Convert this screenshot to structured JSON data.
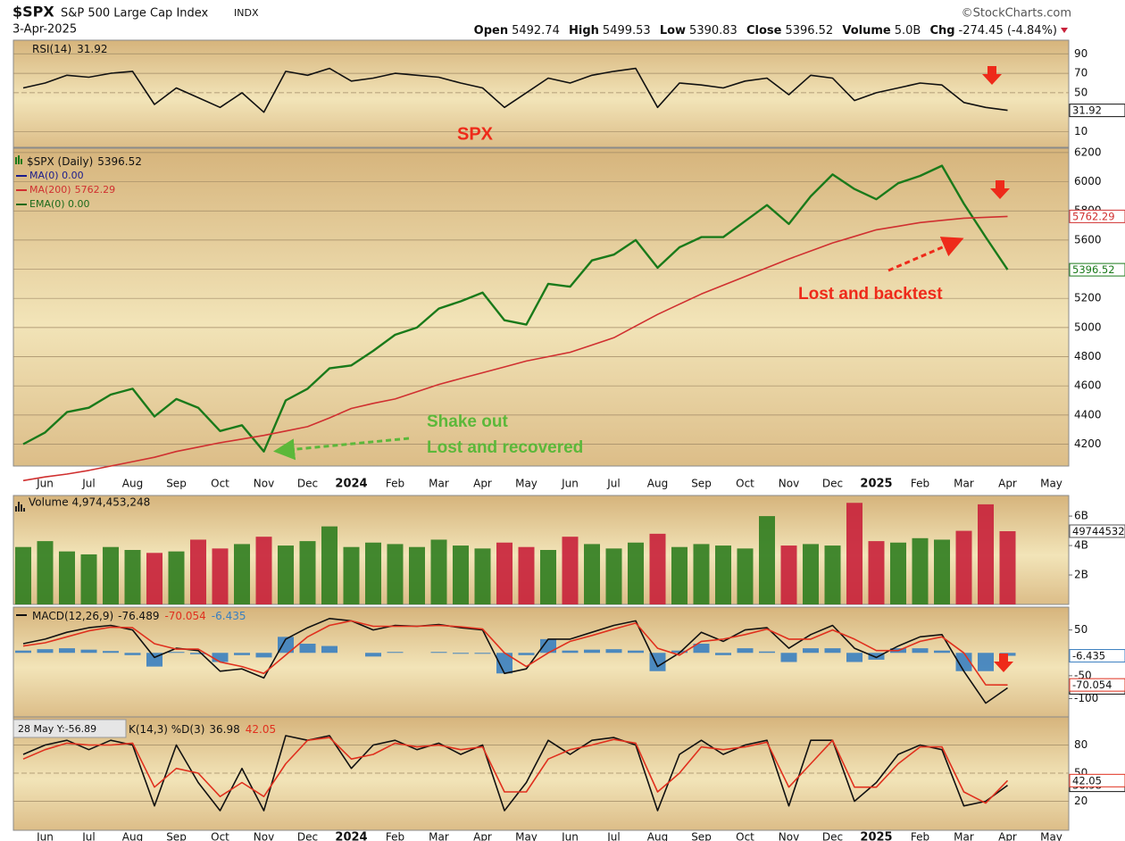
{
  "header": {
    "symbol": "$SPX",
    "name": "S&P 500 Large Cap Index",
    "exchange": "INDX",
    "source": "©StockCharts.com",
    "date": "3-Apr-2025",
    "quote": [
      {
        "label": "Open",
        "value": 5492.74
      },
      {
        "label": "High",
        "value": 5499.53
      },
      {
        "label": "Low",
        "value": 5390.83
      },
      {
        "label": "Close",
        "value": 5396.52
      },
      {
        "label": "Volume",
        "value": "5.0B"
      },
      {
        "label": "Chg",
        "value": "-274.45 (-4.84%)"
      }
    ]
  },
  "chart_data": [
    {
      "type": "line",
      "title": "RSI(14)",
      "annotation": "SPX",
      "ylim": [
        -6,
        104
      ],
      "yticks": [
        10,
        50,
        70,
        90
      ],
      "grid": true,
      "series": [
        {
          "name": "RSI(14)",
          "color": "#111111",
          "values": [
            55,
            60,
            68,
            66,
            70,
            72,
            38,
            55,
            45,
            35,
            50,
            30,
            72,
            68,
            75,
            62,
            65,
            70,
            68,
            66,
            60,
            55,
            35,
            50,
            65,
            60,
            68,
            72,
            75,
            35,
            60,
            58,
            55,
            62,
            65,
            48,
            68,
            65,
            42,
            50,
            55,
            60,
            58,
            40,
            35,
            31.92,
            null,
            null
          ]
        }
      ]
    },
    {
      "type": "line",
      "title": "$SPX (Daily)",
      "categories": [
        null,
        "Jun",
        null,
        "Jul",
        null,
        "Aug",
        null,
        "Sep",
        null,
        "Oct",
        null,
        "Nov",
        null,
        "Dec",
        null,
        "2024",
        null,
        "Feb",
        null,
        "Mar",
        null,
        "Apr",
        null,
        "May",
        null,
        "Jun",
        null,
        "Jul",
        null,
        "Aug",
        null,
        "Sep",
        null,
        "Oct",
        null,
        "Nov",
        null,
        "Dec",
        null,
        "2025",
        null,
        "Feb",
        null,
        "Mar",
        null,
        "Apr",
        null,
        "May"
      ],
      "ylim": [
        4050,
        6230
      ],
      "yticks": [
        4200,
        4400,
        4600,
        4800,
        5000,
        5200,
        5400,
        5600,
        5800,
        6000,
        6200
      ],
      "grid": true,
      "series": [
        {
          "name": "$SPX (Daily)",
          "color": "#1a7a1a",
          "values": [
            4200,
            4280,
            4420,
            4450,
            4540,
            4580,
            4390,
            4510,
            4450,
            4290,
            4330,
            4150,
            4500,
            4580,
            4720,
            4740,
            4840,
            4950,
            5000,
            5130,
            5180,
            5240,
            5050,
            5020,
            5300,
            5280,
            5460,
            5500,
            5600,
            5410,
            5550,
            5620,
            5620,
            5730,
            5840,
            5710,
            5900,
            6050,
            5950,
            5880,
            5990,
            6040,
            6110,
            5850,
            5620,
            5396.52,
            null,
            null
          ]
        },
        {
          "name": "MA(200)",
          "color": "#d03030",
          "values": [
            3950,
            3975,
            3995,
            4020,
            4050,
            4080,
            4110,
            4150,
            4180,
            4210,
            4235,
            4260,
            4290,
            4320,
            4380,
            4445,
            4480,
            4510,
            4560,
            4610,
            4650,
            4690,
            4730,
            4770,
            4800,
            4830,
            4880,
            4930,
            5010,
            5090,
            5160,
            5230,
            5290,
            5350,
            5410,
            5470,
            5525,
            5580,
            5625,
            5670,
            5695,
            5720,
            5735,
            5750,
            5756,
            5762.29,
            null,
            null
          ]
        }
      ],
      "legend_extra": [
        {
          "text": "MA(0) 0.00",
          "color": "#1c1c8c"
        },
        {
          "text": "EMA(0) 0.00",
          "color": "#1a6a1a"
        }
      ],
      "annotations": [
        "Lost and backtest",
        "Shake out",
        "Lost and recovered"
      ],
      "annotation_colors": [
        "#ee2a1a",
        "#5cb83a"
      ]
    },
    {
      "type": "bar",
      "title": "Volume 4,974,453,248",
      "up_color": "#2f7d1f",
      "down_color": "#c8203a",
      "ylim": [
        0,
        7400000000
      ],
      "yticks": [
        {
          "value": 2000000000,
          "label": "2B"
        },
        {
          "value": 4000000000,
          "label": "4B"
        },
        {
          "value": 6000000000,
          "label": "6B"
        }
      ],
      "grid": false,
      "series": [
        {
          "name": "Volume",
          "color": "#555555",
          "values": [
            3900000000.0,
            4300000000.0,
            3600000000.0,
            3400000000.0,
            3900000000.0,
            3700000000.0,
            3500000000.0,
            3600000000.0,
            4400000000.0,
            3800000000.0,
            4100000000.0,
            4600000000.0,
            4000000000.0,
            4300000000.0,
            5300000000.0,
            3900000000.0,
            4200000000.0,
            4100000000.0,
            3900000000.0,
            4400000000.0,
            4000000000.0,
            3800000000.0,
            4200000000.0,
            3900000000.0,
            3700000000.0,
            4600000000.0,
            4100000000.0,
            3800000000.0,
            4200000000.0,
            4800000000.0,
            3900000000.0,
            4100000000.0,
            4000000000.0,
            3800000000.0,
            6000000000.0,
            4000000000.0,
            4100000000.0,
            4000000000.0,
            6900000000.0,
            4300000000.0,
            4200000000.0,
            4500000000.0,
            4400000000.0,
            5000000000.0,
            6800000000.0,
            4974453248,
            null,
            null
          ]
        }
      ]
    },
    {
      "type": "line",
      "title": "MACD(12,26,9)",
      "ylim": [
        -140,
        100
      ],
      "yticks": [
        -100,
        -50,
        50
      ],
      "grid": false,
      "series": [
        {
          "name": "MACD",
          "color": "#111111",
          "values": [
            20,
            30,
            45,
            55,
            60,
            50,
            -10,
            10,
            5,
            -40,
            -35,
            -55,
            30,
            55,
            75,
            70,
            50,
            60,
            58,
            62,
            55,
            50,
            -45,
            -35,
            30,
            30,
            45,
            60,
            70,
            -30,
            0,
            45,
            25,
            50,
            55,
            10,
            40,
            60,
            10,
            -10,
            15,
            35,
            40,
            -40,
            -110,
            -76.489,
            null,
            null
          ]
        },
        {
          "name": "Signal",
          "color": "#e0301e",
          "values": [
            15,
            22,
            35,
            48,
            56,
            55,
            20,
            8,
            8,
            -20,
            -30,
            -45,
            -5,
            35,
            60,
            70,
            58,
            58,
            58,
            60,
            57,
            52,
            0,
            -30,
            0,
            25,
            38,
            52,
            65,
            10,
            -5,
            25,
            30,
            40,
            52,
            30,
            30,
            50,
            30,
            5,
            5,
            25,
            35,
            0,
            -70,
            -70.054,
            null,
            null
          ]
        },
        {
          "name": "Histogram",
          "color": "#3a7fc0",
          "type": "bar",
          "values": [
            5,
            8,
            10,
            7,
            4,
            -5,
            -30,
            2,
            -3,
            -20,
            -5,
            -10,
            35,
            20,
            15,
            0,
            -8,
            2,
            0,
            2,
            -2,
            -2,
            -45,
            -5,
            30,
            5,
            7,
            8,
            5,
            -40,
            5,
            20,
            -5,
            10,
            3,
            -20,
            10,
            10,
            -20,
            -15,
            10,
            10,
            5,
            -40,
            -40,
            -6.435,
            null,
            null
          ]
        }
      ]
    },
    {
      "type": "line",
      "title": "K(14,3) %D(3)",
      "cursor_label": "28 May Y:-56.89",
      "categories": [
        null,
        "Jun",
        null,
        "Jul",
        null,
        "Aug",
        null,
        "Sep",
        null,
        "Oct",
        null,
        "Nov",
        null,
        "Dec",
        null,
        "2024",
        null,
        "Feb",
        null,
        "Mar",
        null,
        "Apr",
        null,
        "May",
        null,
        "Jun",
        null,
        "Jul",
        null,
        "Aug",
        null,
        "Sep",
        null,
        "Oct",
        null,
        "Nov",
        null,
        "Dec",
        null,
        "2025",
        null,
        "Feb",
        null,
        "Mar",
        null,
        "Apr",
        null,
        "May"
      ],
      "ylim": [
        -11,
        110
      ],
      "yticks": [
        20,
        50,
        80
      ],
      "grid": true,
      "series": [
        {
          "name": "%K",
          "color": "#111111",
          "values": [
            70,
            80,
            85,
            75,
            85,
            80,
            15,
            80,
            40,
            10,
            55,
            10,
            90,
            85,
            90,
            55,
            80,
            85,
            75,
            82,
            70,
            80,
            10,
            40,
            85,
            70,
            85,
            88,
            80,
            10,
            70,
            85,
            70,
            80,
            85,
            15,
            85,
            85,
            20,
            40,
            70,
            80,
            75,
            15,
            20,
            36.98,
            null,
            null
          ]
        },
        {
          "name": "%D",
          "color": "#e0301e",
          "values": [
            65,
            75,
            82,
            80,
            80,
            82,
            35,
            55,
            50,
            25,
            40,
            25,
            60,
            85,
            88,
            65,
            70,
            82,
            78,
            80,
            75,
            78,
            30,
            30,
            65,
            75,
            80,
            86,
            82,
            30,
            50,
            78,
            75,
            78,
            83,
            35,
            60,
            85,
            35,
            35,
            60,
            78,
            78,
            30,
            18,
            42.05,
            null,
            null
          ]
        }
      ]
    }
  ]
}
